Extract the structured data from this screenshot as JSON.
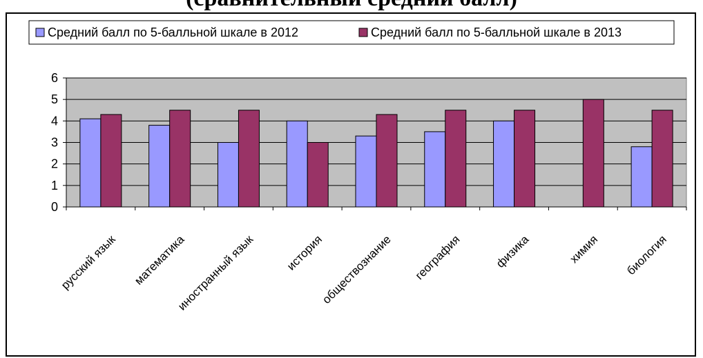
{
  "page_title": "(сравнительный средний балл)",
  "chart_data": {
    "type": "bar",
    "title": "",
    "xlabel": "",
    "ylabel": "",
    "ylim": [
      0,
      6
    ],
    "yticks": [
      0,
      1,
      2,
      3,
      4,
      5,
      6
    ],
    "grid": true,
    "legend_position": "top",
    "categories": [
      "русский язык",
      "математика",
      "иностранный язык",
      "история",
      "обществознание",
      "география",
      "физика",
      "химия",
      "биология"
    ],
    "series": [
      {
        "name": "Средний балл по 5-балльной шкале в 2012",
        "color": "#9999ff",
        "values": [
          4.1,
          3.8,
          3.0,
          4.0,
          3.3,
          3.5,
          4.0,
          null,
          2.8
        ]
      },
      {
        "name": "Средний балл по 5-балльной шкале в 2013",
        "color": "#993366",
        "values": [
          4.3,
          4.5,
          4.5,
          3.0,
          4.3,
          4.5,
          4.5,
          5.0,
          4.5
        ]
      }
    ],
    "plot_background": "#c0c0c0"
  }
}
